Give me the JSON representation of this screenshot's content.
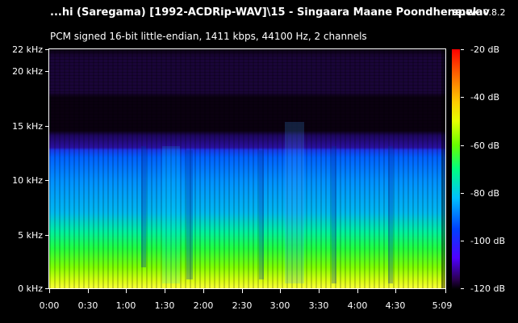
{
  "header": {
    "file_title": "...hi (Saregama) [1992-ACDRip-WAV]\\15 - Singaara Maane Poondhene.wav",
    "app_name": "spek",
    "app_version": "0.8.2",
    "stream_info": "PCM signed 16-bit little-endian, 1411 kbps, 44100 Hz, 2 channels"
  },
  "frequency_axis": {
    "ticks": [
      "22 kHz",
      "20 kHz",
      "15 kHz",
      "10 kHz",
      "5 kHz",
      "0 kHz"
    ]
  },
  "time_axis": {
    "ticks": [
      "0:00",
      "0:30",
      "1:00",
      "1:30",
      "2:00",
      "2:30",
      "3:00",
      "3:30",
      "4:00",
      "4:30",
      "5:09"
    ]
  },
  "db_scale": {
    "ticks": [
      "-20 dB",
      "-40 dB",
      "-60 dB",
      "-80 dB",
      "-100 dB",
      "-120 dB"
    ]
  },
  "colors": {
    "background": "#000000",
    "text": "#ffffff"
  }
}
